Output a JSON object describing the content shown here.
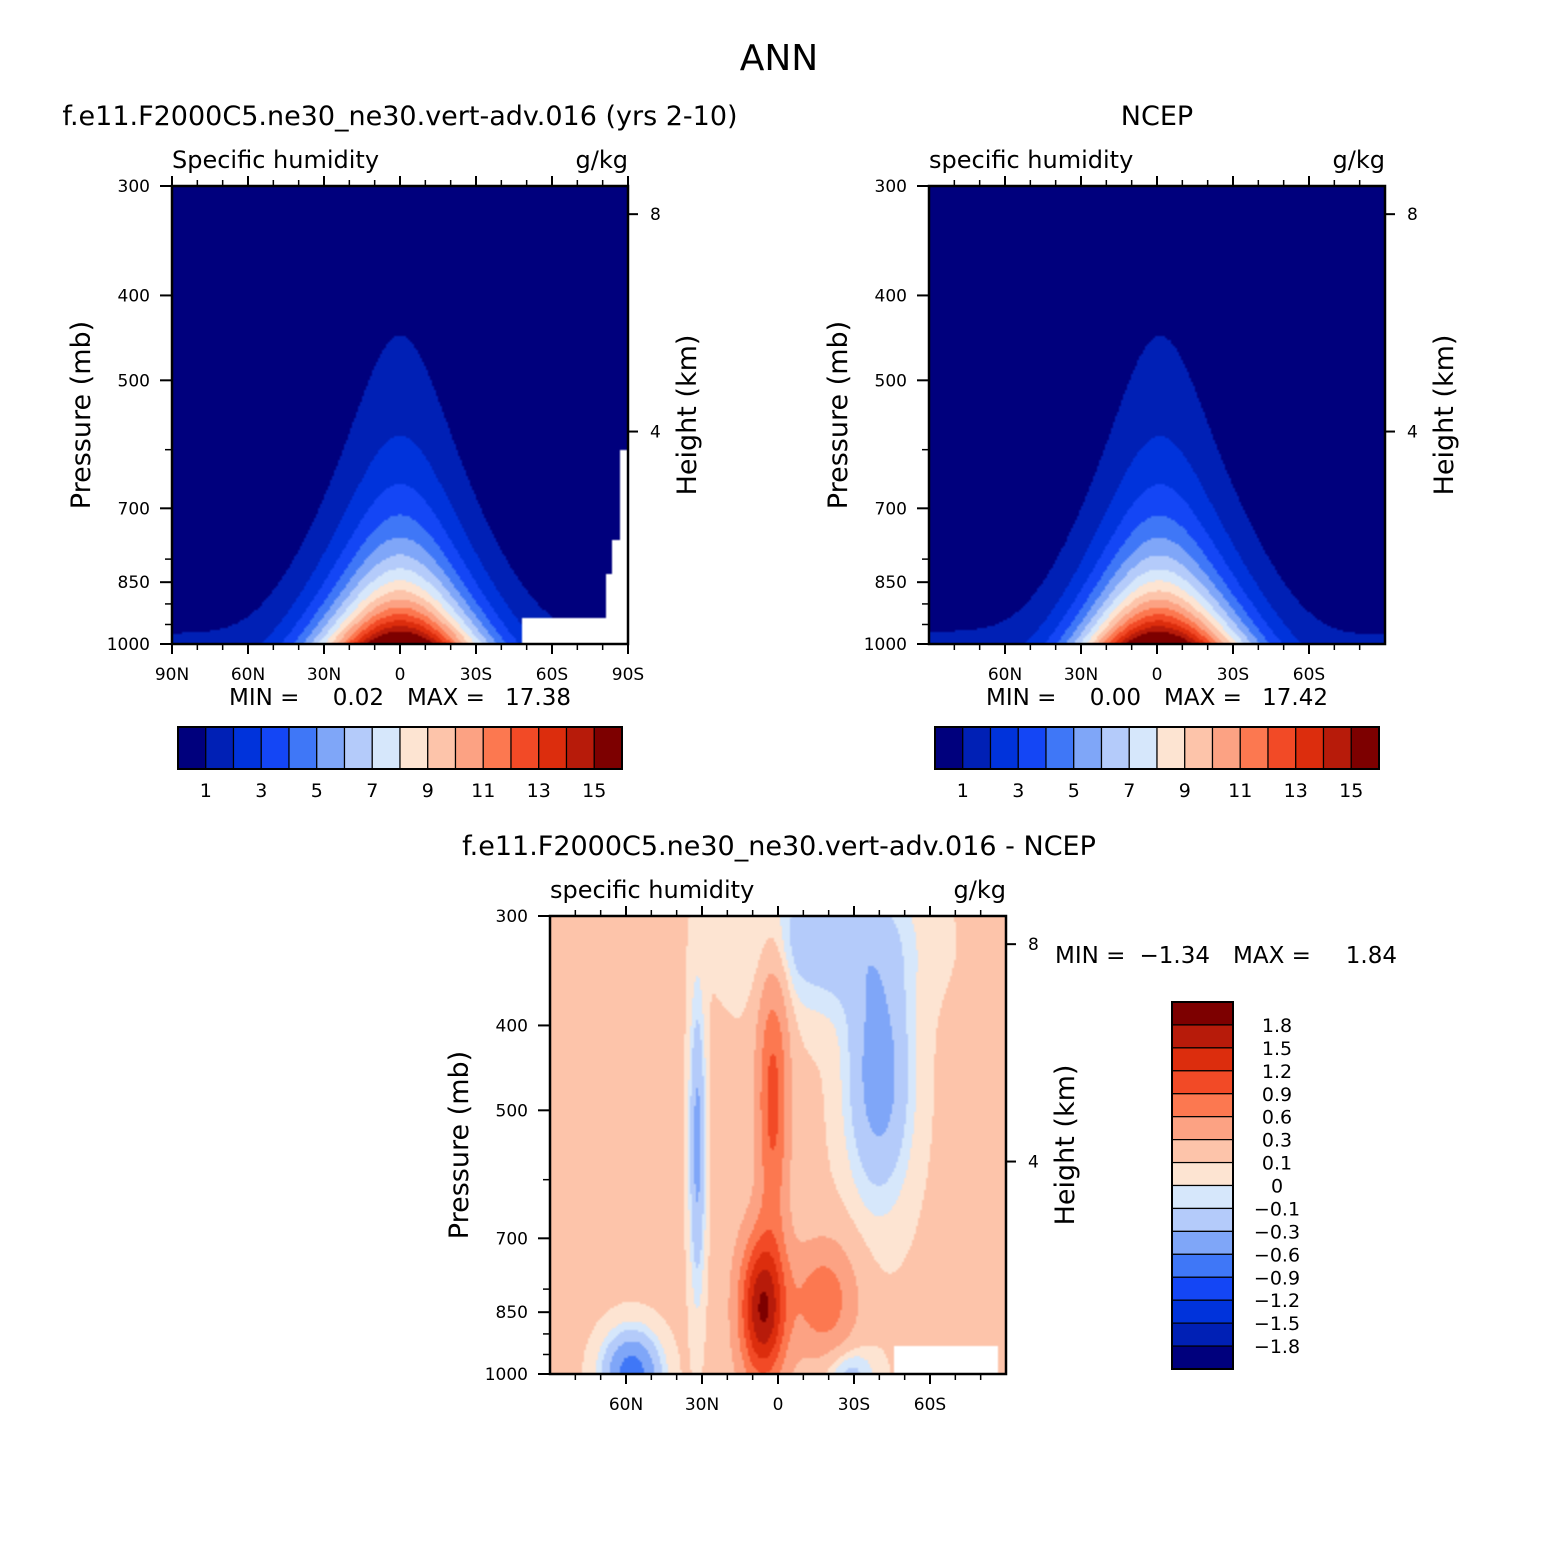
{
  "figure": {
    "title": "ANN"
  },
  "chart_data": [
    {
      "type": "contour",
      "panel_title": "f.e11.F2000C5.ne30_ne30.vert-adv.016 (yrs 2-10)",
      "variable_label": "Specific humidity",
      "units": "g/kg",
      "ylabel": "Pressure (mb)",
      "y2label": "Height (km)",
      "y_ticks": [
        "300",
        "400",
        "500",
        "700",
        "850",
        "1000"
      ],
      "y2_ticks": [
        "8",
        "4"
      ],
      "x_ticks": [
        "90N",
        "60N",
        "30N",
        "0",
        "30S",
        "60S",
        "90S"
      ],
      "xlim": [
        "90N",
        "90S"
      ],
      "ylim": [
        1000,
        300
      ],
      "min_label": "MIN =",
      "min_value": "0.02",
      "max_label": "MAX =",
      "max_value": "17.38",
      "missing_region": "high southern latitudes near surface",
      "colorbar_labels": [
        "1",
        "3",
        "5",
        "7",
        "9",
        "11",
        "13",
        "15"
      ]
    },
    {
      "type": "contour",
      "panel_title": "NCEP",
      "variable_label": "specific humidity",
      "units": "g/kg",
      "ylabel": "Pressure (mb)",
      "y2label": "Height (km)",
      "y_ticks": [
        "300",
        "400",
        "500",
        "700",
        "850",
        "1000"
      ],
      "y2_ticks": [
        "8",
        "4"
      ],
      "x_ticks": [
        "60N",
        "30N",
        "0",
        "30S",
        "60S"
      ],
      "ylim": [
        1000,
        300
      ],
      "min_label": "MIN =",
      "min_value": "0.00",
      "max_label": "MAX =",
      "max_value": "17.42",
      "colorbar_labels": [
        "1",
        "3",
        "5",
        "7",
        "9",
        "11",
        "13",
        "15"
      ]
    },
    {
      "type": "contour",
      "panel_title": "f.e11.F2000C5.ne30_ne30.vert-adv.016 - NCEP",
      "variable_label": "specific humidity",
      "units": "g/kg",
      "ylabel": "Pressure (mb)",
      "y2label": "Height (km)",
      "y_ticks": [
        "300",
        "400",
        "500",
        "700",
        "850",
        "1000"
      ],
      "y2_ticks": [
        "8",
        "4"
      ],
      "x_ticks": [
        "60N",
        "30N",
        "0",
        "30S",
        "60S"
      ],
      "ylim": [
        1000,
        300
      ],
      "min_label": "MIN =",
      "min_value": "−1.34",
      "max_label": "MAX =",
      "max_value": "1.84",
      "colorbar_labels": [
        "1.8",
        "1.5",
        "1.2",
        "0.9",
        "0.6",
        "0.3",
        "0.1",
        "0",
        "−0.1",
        "−0.3",
        "−0.6",
        "−0.9",
        "−1.2",
        "−1.5",
        "−1.8"
      ]
    }
  ],
  "colors": {
    "abs_palette": [
      "#00007d",
      "#0020b5",
      "#0033db",
      "#1446f5",
      "#3f77f7",
      "#7fa6f8",
      "#b4cbfa",
      "#d6e7fb",
      "#fde4d2",
      "#fdc4aa",
      "#fca283",
      "#fc7850",
      "#f24a26",
      "#dc2d0d",
      "#b71b0a",
      "#7d0000"
    ],
    "diff_palette": [
      "#00007d",
      "#0020b5",
      "#0033db",
      "#1446f5",
      "#3f77f7",
      "#7fa6f8",
      "#b4cbfa",
      "#d6e7fb",
      "#fde4d2",
      "#fdc4aa",
      "#fca283",
      "#fc7850",
      "#f24a26",
      "#dc2d0d",
      "#b71b0a",
      "#7d0000"
    ],
    "missing": "#ffffff"
  }
}
